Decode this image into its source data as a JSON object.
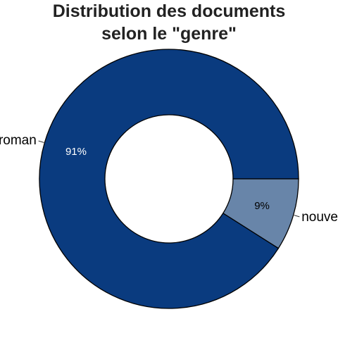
{
  "chart_data": {
    "type": "pie",
    "style": "donut",
    "title_lines": [
      "Distribution des documents",
      "selon le \"genre\""
    ],
    "slices": [
      {
        "label": "roman",
        "percent": 91,
        "display": "91%",
        "color": "#0a3b7f",
        "text_color": "#ffffff"
      },
      {
        "label": "nouvelle",
        "percent": 9,
        "display": "9%",
        "color": "#6885a9",
        "text_color": "#000000"
      }
    ]
  }
}
